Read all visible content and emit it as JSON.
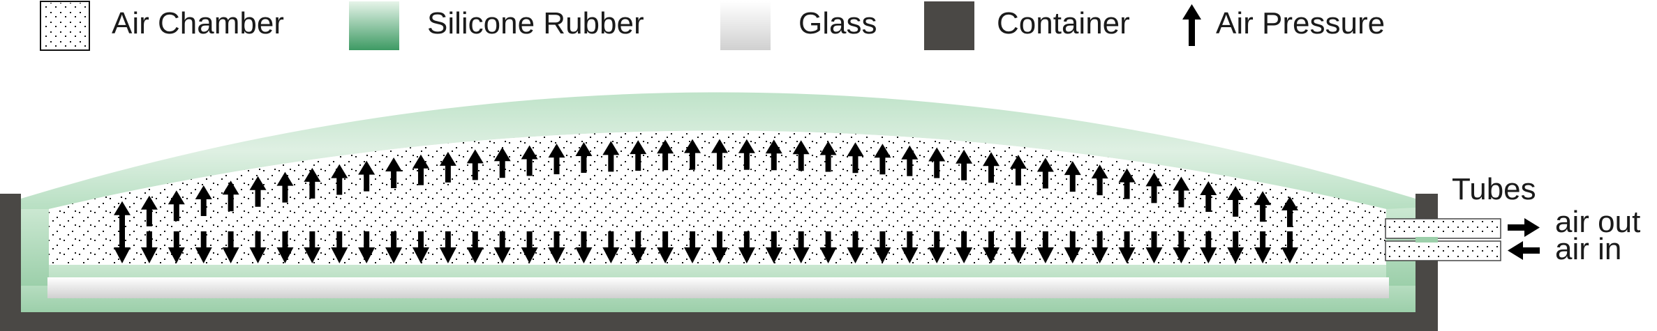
{
  "legend": {
    "air_chamber": "Air Chamber",
    "silicone_rubber": "Silicone Rubber",
    "glass": "Glass",
    "container": "Container",
    "air_pressure": "Air Pressure"
  },
  "labels": {
    "tubes": "Tubes",
    "air_out": "air out",
    "air_in": "air in"
  },
  "colors": {
    "container": "#4a4845",
    "silicone_dark": "#3a9560",
    "silicone_light": "#e9f5ec",
    "glass_light": "#fafafa",
    "glass_dark": "#d4d4d4",
    "arrow": "#000000",
    "dots": "#111111"
  }
}
